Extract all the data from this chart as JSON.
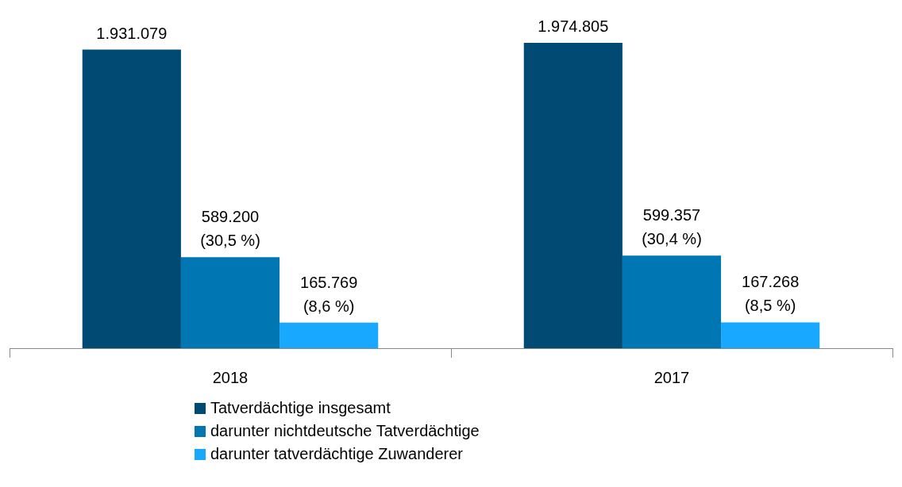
{
  "chart_data": {
    "type": "bar",
    "categories": [
      "2018",
      "2017"
    ],
    "series": [
      {
        "name": "Tatverdächtige insgesamt",
        "color": "#004a73",
        "values": [
          1931079,
          1974805
        ],
        "value_labels": [
          "1.931.079",
          "1.974.805"
        ]
      },
      {
        "name": "darunter nichtdeutsche Tatverdächtige",
        "color": "#0077b3",
        "values": [
          589200,
          599357
        ],
        "value_labels": [
          "589.200\n(30,5 %)",
          "599.357\n(30,4 %)"
        ]
      },
      {
        "name": "darunter tatverdächtige Zuwanderer",
        "color": "#19a8ff",
        "values": [
          165769,
          167268
        ],
        "value_labels": [
          "165.769\n(8,6 %)",
          "167.268\n(8,5 %)"
        ]
      }
    ],
    "legend": "bottom",
    "tick_labels": "x",
    "grid": false
  }
}
